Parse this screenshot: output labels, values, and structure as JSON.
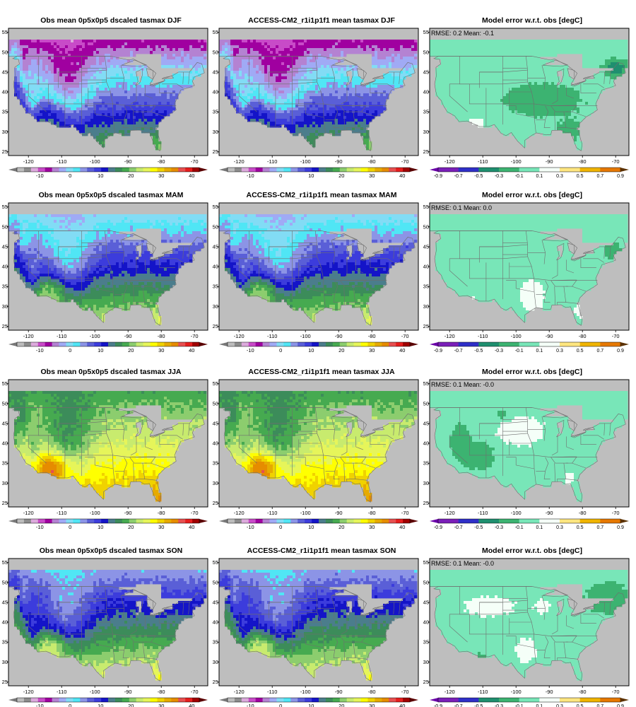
{
  "panels": [
    {
      "title": "Obs mean 0p5x0p5 dscaled tasmax DJF",
      "kind": "field",
      "season": "DJF"
    },
    {
      "title": "ACCESS-CM2_r1i1p1f1 mean tasmax DJF",
      "kind": "field",
      "season": "DJF"
    },
    {
      "title": "Model error w.r.t. obs [degC]",
      "kind": "error",
      "season": "DJF",
      "stats": "RMSE: 0.2  Mean: -0.1"
    },
    {
      "title": "Obs mean 0p5x0p5 dscaled tasmax MAM",
      "kind": "field",
      "season": "MAM"
    },
    {
      "title": "ACCESS-CM2_r1i1p1f1 mean tasmax MAM",
      "kind": "field",
      "season": "MAM"
    },
    {
      "title": "Model error w.r.t. obs [degC]",
      "kind": "error",
      "season": "MAM",
      "stats": "RMSE: 0.1  Mean: 0.0"
    },
    {
      "title": "Obs mean 0p5x0p5 dscaled tasmax JJA",
      "kind": "field",
      "season": "JJA"
    },
    {
      "title": "ACCESS-CM2_r1i1p1f1 mean tasmax JJA",
      "kind": "field",
      "season": "JJA"
    },
    {
      "title": "Model error w.r.t. obs [degC]",
      "kind": "error",
      "season": "JJA",
      "stats": "RMSE: 0.1  Mean: -0.0"
    },
    {
      "title": "Obs mean 0p5x0p5 dscaled tasmax SON",
      "kind": "field",
      "season": "SON"
    },
    {
      "title": "ACCESS-CM2_r1i1p1f1 mean tasmax SON",
      "kind": "field",
      "season": "SON"
    },
    {
      "title": "Model error w.r.t. obs [degC]",
      "kind": "error",
      "season": "SON",
      "stats": "RMSE: 0.1  Mean: -0.0"
    }
  ],
  "axes": {
    "lon_ticks": [
      -120,
      -110,
      -100,
      -90,
      -80,
      -70
    ],
    "lat_ticks": [
      25,
      30,
      35,
      40,
      45,
      50,
      55
    ],
    "lon_range": [
      -126,
      -66
    ],
    "lat_range": [
      24,
      56
    ]
  },
  "field_colorbar": {
    "tick_labels": [
      "-10",
      "0",
      "10",
      "20",
      "30",
      "40"
    ],
    "tick_values": [
      -10,
      0,
      10,
      20,
      30,
      40
    ],
    "range": [
      -17.5,
      42.5
    ],
    "step": 2.5,
    "under_color": "#787878",
    "over_color": "#5a0000",
    "colors": [
      "#bdbdbd",
      "#8c8c8c",
      "#dcaadc",
      "#c84bc8",
      "#a000a0",
      "#b482d2",
      "#a0aaf5",
      "#82dcf5",
      "#50e6f5",
      "#8c94e6",
      "#5a5fd7",
      "#3c3cdc",
      "#1414c8",
      "#4b7d8c",
      "#3c8c5a",
      "#46aa50",
      "#8ccd6e",
      "#c8eb6e",
      "#e6f55a",
      "#ffff00",
      "#f0d200",
      "#e6aa00",
      "#e68c00",
      "#e65050",
      "#e61e1e",
      "#a00000"
    ]
  },
  "error_colorbar": {
    "tick_labels": [
      "-0.9",
      "-0.7",
      "-0.5",
      "-0.3",
      "-0.1",
      "0.1",
      "0.3",
      "0.5",
      "0.7",
      "0.9"
    ],
    "tick_values": [
      -0.9,
      -0.7,
      -0.5,
      -0.3,
      -0.1,
      0.1,
      0.3,
      0.5,
      0.7,
      0.9
    ],
    "under_color": "#6a00a8",
    "over_color": "#5a3000",
    "colors": [
      "#7a1fb8",
      "#2f2fc8",
      "#1f8f6f",
      "#3cb371",
      "#78e6b8",
      "#f5fff8",
      "#ffe680",
      "#f0b400",
      "#e67800",
      "#d23c1e"
    ]
  },
  "colors": {
    "ocean": "#bebebe",
    "land_error": "#f5fff8",
    "border": "#6e6e6e",
    "frame": "#000000"
  }
}
